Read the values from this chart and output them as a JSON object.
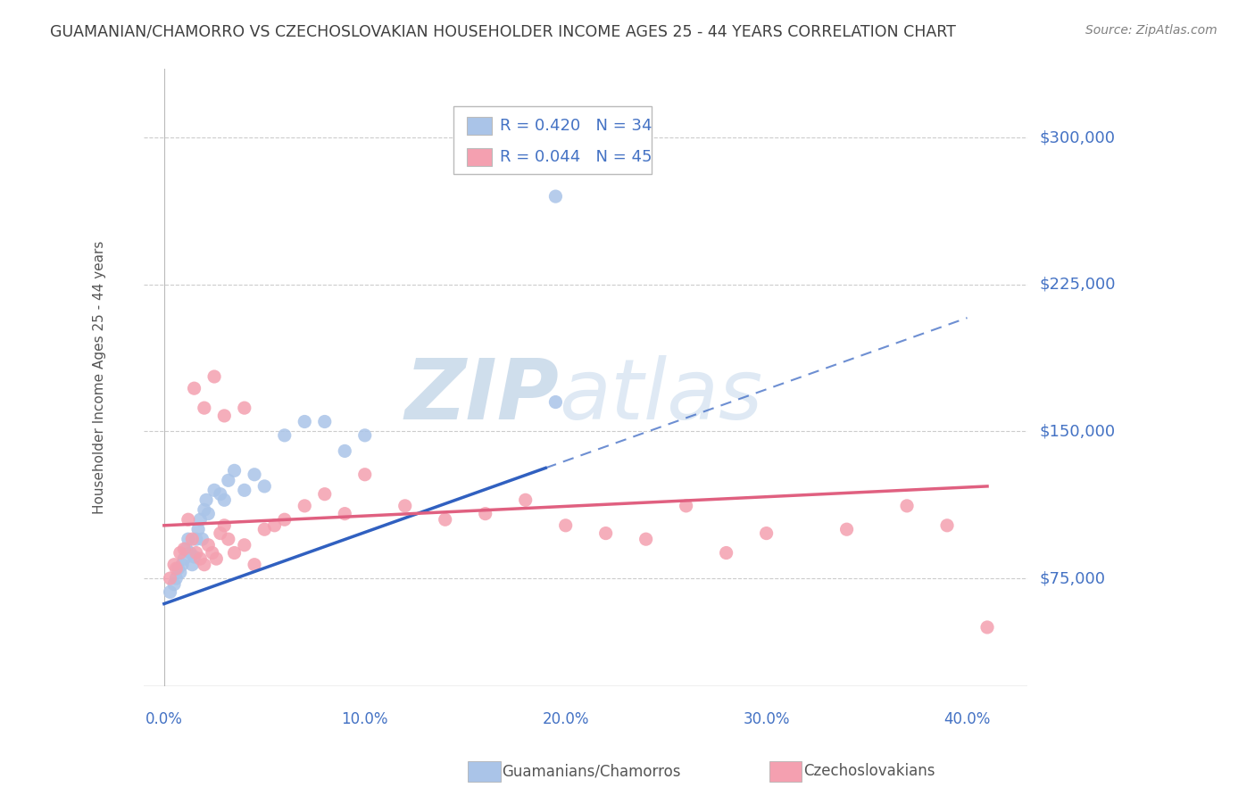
{
  "title": "GUAMANIAN/CHAMORRO VS CZECHOSLOVAKIAN HOUSEHOLDER INCOME AGES 25 - 44 YEARS CORRELATION CHART",
  "source": "Source: ZipAtlas.com",
  "ylabel": "Householder Income Ages 25 - 44 years",
  "watermark": "ZIPatlas",
  "legend_label_1": "Guamanians/Chamorros",
  "legend_label_2": "Czechoslovakians",
  "R1": 0.42,
  "N1": 34,
  "R2": 0.044,
  "N2": 45,
  "y_tick_labels": [
    "$75,000",
    "$150,000",
    "$225,000",
    "$300,000"
  ],
  "y_tick_values": [
    75000,
    150000,
    225000,
    300000
  ],
  "x_tick_labels": [
    "0.0%",
    "10.0%",
    "20.0%",
    "30.0%",
    "40.0%"
  ],
  "x_tick_values": [
    0.0,
    10.0,
    20.0,
    30.0,
    40.0
  ],
  "xlim": [
    -1.0,
    43
  ],
  "ylim": [
    20000,
    335000
  ],
  "blue_scatter_x": [
    0.3,
    0.5,
    0.6,
    0.7,
    0.8,
    0.9,
    1.0,
    1.1,
    1.2,
    1.3,
    1.4,
    1.5,
    1.6,
    1.7,
    1.8,
    1.9,
    2.0,
    2.1,
    2.2,
    2.5,
    2.8,
    3.0,
    3.2,
    3.5,
    4.0,
    4.5,
    5.0,
    6.0,
    7.0,
    8.0,
    9.0,
    19.5,
    19.5,
    10.0
  ],
  "blue_scatter_y": [
    68000,
    72000,
    75000,
    80000,
    78000,
    82000,
    85000,
    90000,
    95000,
    88000,
    82000,
    86000,
    95000,
    100000,
    105000,
    95000,
    110000,
    115000,
    108000,
    120000,
    118000,
    115000,
    125000,
    130000,
    120000,
    128000,
    122000,
    148000,
    155000,
    155000,
    140000,
    270000,
    165000,
    148000
  ],
  "pink_scatter_x": [
    0.3,
    0.5,
    0.6,
    0.8,
    1.0,
    1.2,
    1.4,
    1.6,
    1.8,
    2.0,
    2.2,
    2.4,
    2.6,
    2.8,
    3.0,
    3.2,
    3.5,
    4.0,
    4.5,
    5.0,
    5.5,
    6.0,
    7.0,
    8.0,
    9.0,
    10.0,
    12.0,
    14.0,
    16.0,
    18.0,
    20.0,
    22.0,
    24.0,
    26.0,
    28.0,
    30.0,
    34.0,
    37.0,
    39.0,
    41.0,
    1.5,
    2.0,
    2.5,
    3.0,
    4.0
  ],
  "pink_scatter_y": [
    75000,
    82000,
    80000,
    88000,
    90000,
    105000,
    95000,
    88000,
    85000,
    82000,
    92000,
    88000,
    85000,
    98000,
    102000,
    95000,
    88000,
    92000,
    82000,
    100000,
    102000,
    105000,
    112000,
    118000,
    108000,
    128000,
    112000,
    105000,
    108000,
    115000,
    102000,
    98000,
    95000,
    112000,
    88000,
    98000,
    100000,
    112000,
    102000,
    50000,
    172000,
    162000,
    178000,
    158000,
    162000
  ],
  "blue_line_x0": 0,
  "blue_line_x1": 40,
  "blue_line_y0": 62000,
  "blue_line_y1": 208000,
  "blue_solid_x1": 19,
  "pink_line_x0": 0,
  "pink_line_x1": 41,
  "pink_line_y0": 102000,
  "pink_line_y1": 122000,
  "axis_color": "#4472c4",
  "blue_dot_color": "#aac4e8",
  "pink_dot_color": "#f4a0b0",
  "blue_line_color": "#3060c0",
  "pink_line_color": "#e06080",
  "grid_color": "#cccccc",
  "watermark_color": "#c8d8e8",
  "title_color": "#404040",
  "source_color": "#808080",
  "background_color": "#ffffff"
}
